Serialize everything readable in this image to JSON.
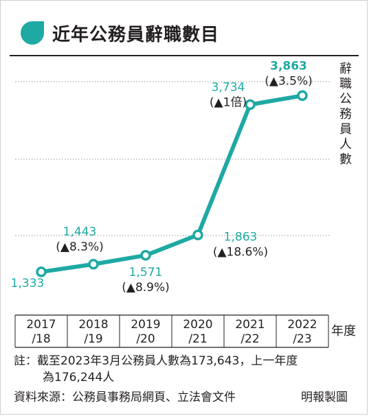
{
  "title": "近年公務員辭職數目",
  "chart_data": {
    "type": "line",
    "title": "近年公務員辭職數目",
    "xlabel": "年度",
    "ylabel": "辭職公務員人數",
    "categories": [
      "2017/18",
      "2018/19",
      "2019/20",
      "2020/21",
      "2021/22",
      "2022/23"
    ],
    "category_lines": [
      [
        "2017",
        "/18"
      ],
      [
        "2018",
        "/19"
      ],
      [
        "2019",
        "/20"
      ],
      [
        "2020",
        "/21"
      ],
      [
        "2021",
        "/22"
      ],
      [
        "2022",
        "/23"
      ]
    ],
    "values": [
      1333,
      1443,
      1571,
      1863,
      3734,
      3863
    ],
    "value_labels": [
      "1,333",
      "1,443",
      "1,571",
      "1,863",
      "3,734",
      "3,863"
    ],
    "change_labels": [
      "",
      "(▲8.3%)",
      "(▲8.9%)",
      "(▲18.6%)",
      "(▲1倍)",
      "(▲3.5%)"
    ],
    "ylim": [
      900,
      4250
    ],
    "grid": true,
    "colors": {
      "line": "#1ea9a3",
      "text": "#231f20",
      "grid": "#9a9a9a"
    }
  },
  "notes": {
    "line1": "註：截至2023年3月公務員人數為173,643，上一年度",
    "line2": "為176,244人",
    "source": "資料來源：公務員事務局網頁、立法會文件",
    "credit": "明報製圖"
  }
}
